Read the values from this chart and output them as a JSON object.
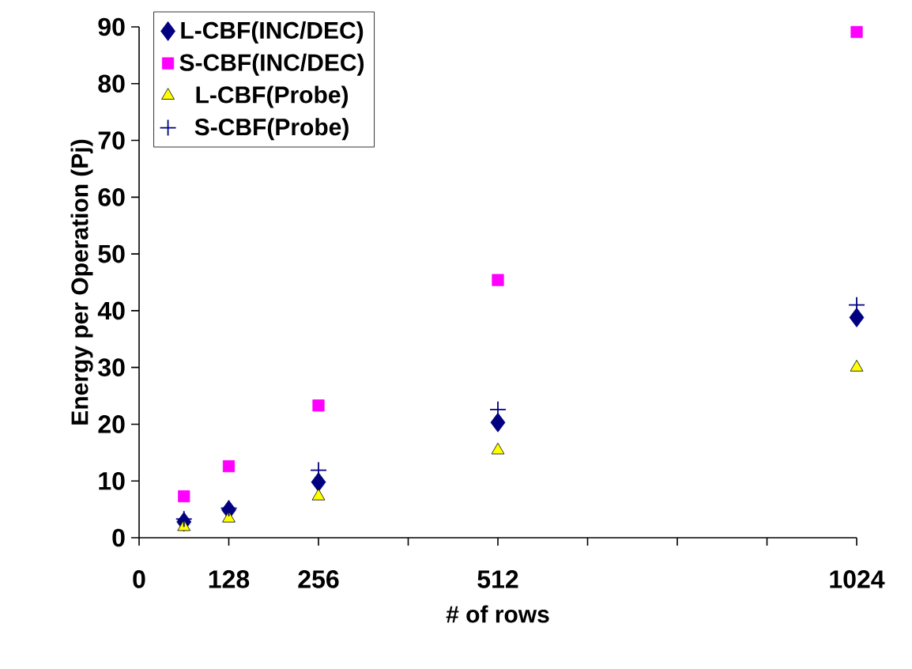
{
  "chart_data": {
    "type": "scatter",
    "xlabel": "# of rows",
    "ylabel": "Energy per Operation (Pj)",
    "x": [
      64,
      128,
      256,
      512,
      1024
    ],
    "xlim": [
      0,
      1024
    ],
    "xticks": [
      0,
      128,
      256,
      {
        "value": 384,
        "label": null
      },
      512,
      {
        "value": 640,
        "label": null
      },
      {
        "value": 768,
        "label": null
      },
      {
        "value": 896,
        "label": null
      },
      1024
    ],
    "ylim": [
      0,
      90
    ],
    "yticks": [
      0,
      10,
      20,
      30,
      40,
      50,
      60,
      70,
      80,
      90
    ],
    "grid": false,
    "legend": "top left",
    "series": [
      {
        "name": "L-CBF(INC/DEC)",
        "color": "#000080",
        "marker": "diamond",
        "values": [
          2.8,
          4.9,
          9.8,
          20.3,
          38.8
        ]
      },
      {
        "name": "S-CBF(INC/DEC)",
        "color": "#ff00ff",
        "marker": "square",
        "values": [
          7.3,
          12.6,
          23.3,
          45.4,
          89.1
        ]
      },
      {
        "name": "L-CBF(Probe)",
        "color": "#ffff00",
        "marker": "triangle",
        "values": [
          1.9,
          3.4,
          7.3,
          15.4,
          30.0
        ]
      },
      {
        "name": "S-CBF(Probe)",
        "color": "#000080",
        "marker": "cross",
        "values": [
          3.3,
          5.2,
          11.9,
          22.6,
          41.0
        ]
      }
    ]
  }
}
